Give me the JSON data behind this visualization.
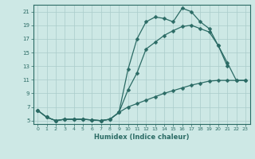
{
  "xlabel": "Humidex (Indice chaleur)",
  "background_color": "#cde8e5",
  "grid_color": "#aaccca",
  "line_color": "#2b6b65",
  "xlim": [
    -0.5,
    23.5
  ],
  "ylim": [
    4.5,
    22
  ],
  "yticks": [
    5,
    7,
    9,
    11,
    13,
    15,
    17,
    19,
    21
  ],
  "xticks": [
    0,
    1,
    2,
    3,
    4,
    5,
    6,
    7,
    8,
    9,
    10,
    11,
    12,
    13,
    14,
    15,
    16,
    17,
    18,
    19,
    20,
    21,
    22,
    23
  ],
  "s1x": [
    0,
    1,
    2,
    3,
    4,
    5,
    6,
    7,
    8,
    9,
    10,
    11,
    12,
    13,
    14,
    15,
    16,
    17,
    18,
    19,
    20,
    21
  ],
  "s1y": [
    6.5,
    5.5,
    5.0,
    5.2,
    5.2,
    5.2,
    5.1,
    5.0,
    5.2,
    6.2,
    12.5,
    17.0,
    19.5,
    20.2,
    20.0,
    19.5,
    21.5,
    21.0,
    19.5,
    18.5,
    16.0,
    13.0
  ],
  "s2x": [
    0,
    1,
    2,
    3,
    4,
    5,
    6,
    7,
    8,
    9,
    10,
    11,
    12,
    13,
    14,
    15,
    16,
    17,
    18,
    19,
    20,
    21,
    22,
    23
  ],
  "s2y": [
    6.5,
    5.5,
    5.0,
    5.2,
    5.2,
    5.2,
    5.1,
    5.0,
    5.2,
    6.2,
    9.5,
    12.0,
    15.5,
    16.5,
    17.5,
    18.2,
    18.8,
    19.0,
    18.5,
    18.0,
    16.0,
    13.5,
    10.9,
    10.9
  ],
  "s3x": [
    0,
    1,
    2,
    3,
    4,
    5,
    6,
    7,
    8,
    9,
    10,
    11,
    12,
    13,
    14,
    15,
    16,
    17,
    18,
    19,
    20,
    21,
    22,
    23
  ],
  "s3y": [
    6.5,
    5.5,
    5.0,
    5.2,
    5.2,
    5.2,
    5.1,
    5.0,
    5.2,
    6.2,
    7.0,
    7.5,
    8.0,
    8.5,
    9.0,
    9.4,
    9.8,
    10.2,
    10.5,
    10.8,
    10.9,
    10.9,
    10.9,
    10.9
  ]
}
